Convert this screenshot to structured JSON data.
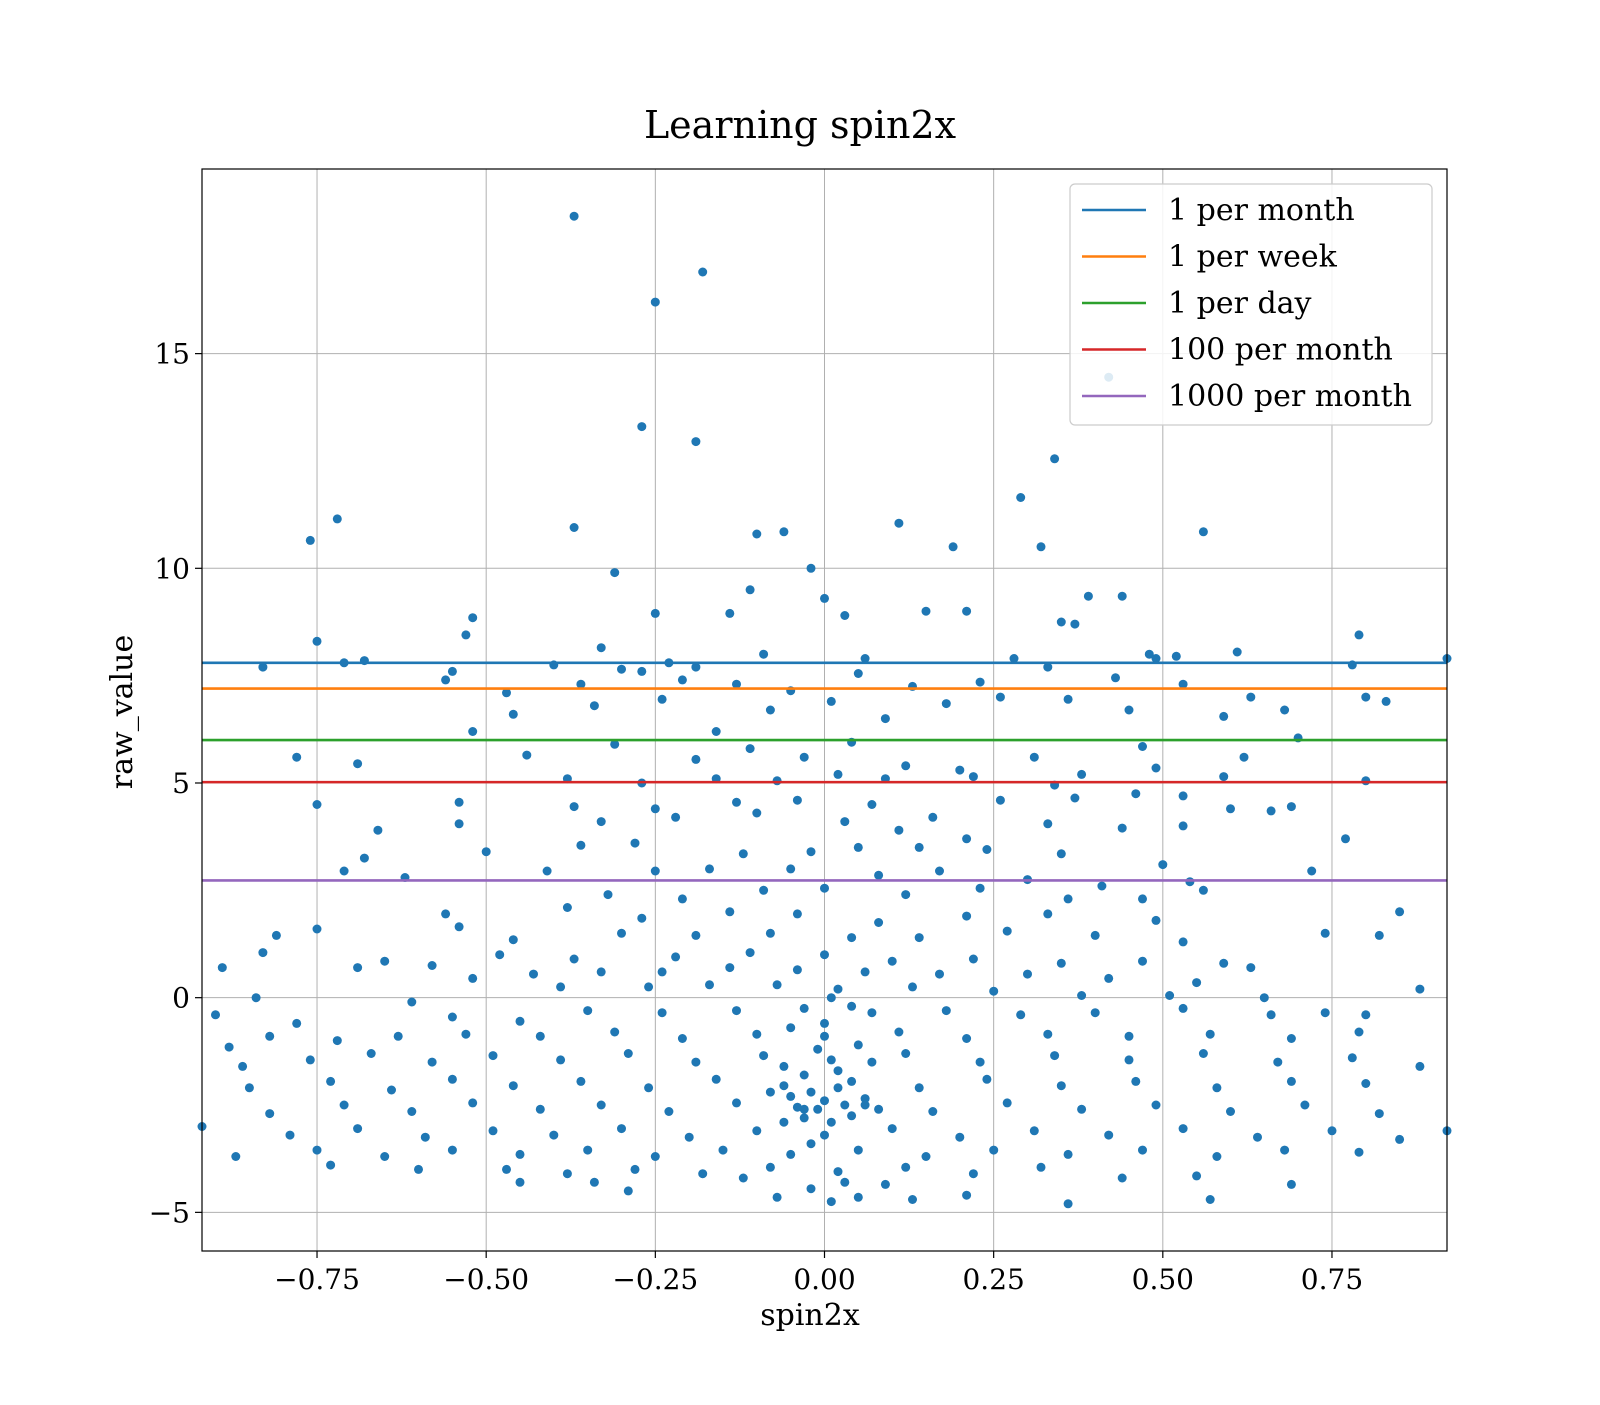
{
  "chart_data": {
    "type": "scatter",
    "title": "Learning spin2x",
    "xlabel": "spin2x",
    "ylabel": "raw_value",
    "xlim": [
      -0.92,
      0.92
    ],
    "ylim": [
      -5.9,
      19.3
    ],
    "grid": true,
    "legend_position": "top-right",
    "x_ticks": [
      -0.75,
      -0.5,
      -0.25,
      0.0,
      0.25,
      0.5,
      0.75
    ],
    "x_tick_labels": [
      "−0.75",
      "−0.50",
      "−0.25",
      "0.00",
      "0.25",
      "0.50",
      "0.75"
    ],
    "y_ticks": [
      -5,
      0,
      5,
      10,
      15
    ],
    "y_tick_labels": [
      "−5",
      "0",
      "5",
      "10",
      "15"
    ],
    "scatter_color": "#1f77b4",
    "hlines": [
      {
        "name": "1 per month",
        "y": 7.8,
        "color": "#1f77b4"
      },
      {
        "name": "1 per week",
        "y": 7.2,
        "color": "#ff7f0e"
      },
      {
        "name": "1 per day",
        "y": 6.0,
        "color": "#2ca02c"
      },
      {
        "name": "100 per month",
        "y": 5.02,
        "color": "#d62728"
      },
      {
        "name": "1000 per month",
        "y": 2.73,
        "color": "#9467bd"
      }
    ],
    "points": [
      [
        -0.37,
        18.2
      ],
      [
        -0.18,
        16.9
      ],
      [
        -0.25,
        16.2
      ],
      [
        -0.27,
        13.3
      ],
      [
        -0.19,
        12.95
      ],
      [
        0.42,
        14.45
      ],
      [
        0.34,
        12.55
      ],
      [
        0.29,
        11.65
      ],
      [
        -0.72,
        11.15
      ],
      [
        -0.76,
        10.65
      ],
      [
        -0.37,
        10.95
      ],
      [
        -0.1,
        10.8
      ],
      [
        -0.06,
        10.85
      ],
      [
        0.11,
        11.05
      ],
      [
        0.19,
        10.5
      ],
      [
        0.32,
        10.5
      ],
      [
        0.56,
        10.85
      ],
      [
        -0.02,
        10.0
      ],
      [
        -0.31,
        9.9
      ],
      [
        -0.11,
        9.5
      ],
      [
        0.0,
        9.3
      ],
      [
        0.21,
        9.0
      ],
      [
        0.39,
        9.35
      ],
      [
        0.44,
        9.35
      ],
      [
        0.15,
        9.0
      ],
      [
        -0.25,
        8.95
      ],
      [
        -0.52,
        8.85
      ],
      [
        -0.53,
        8.45
      ],
      [
        -0.14,
        8.95
      ],
      [
        0.03,
        8.9
      ],
      [
        0.35,
        8.75
      ],
      [
        0.37,
        8.7
      ],
      [
        -0.75,
        8.3
      ],
      [
        -0.33,
        8.15
      ],
      [
        0.61,
        8.05
      ],
      [
        0.79,
        8.45
      ],
      [
        0.48,
        8.0
      ],
      [
        0.49,
        7.9
      ],
      [
        0.52,
        7.95
      ],
      [
        0.92,
        7.9
      ],
      [
        -0.83,
        7.7
      ],
      [
        -0.71,
        7.8
      ],
      [
        -0.68,
        7.85
      ],
      [
        -0.4,
        7.75
      ],
      [
        -0.23,
        7.8
      ],
      [
        -0.3,
        7.65
      ],
      [
        -0.19,
        7.7
      ],
      [
        -0.09,
        8.0
      ],
      [
        0.06,
        7.9
      ],
      [
        0.28,
        7.9
      ],
      [
        -0.55,
        7.6
      ],
      [
        -0.47,
        7.1
      ],
      [
        -0.36,
        7.3
      ],
      [
        -0.27,
        7.6
      ],
      [
        -0.21,
        7.4
      ],
      [
        -0.13,
        7.3
      ],
      [
        -0.05,
        7.15
      ],
      [
        0.05,
        7.55
      ],
      [
        0.13,
        7.25
      ],
      [
        0.23,
        7.35
      ],
      [
        0.33,
        7.7
      ],
      [
        0.43,
        7.45
      ],
      [
        0.53,
        7.3
      ],
      [
        0.63,
        7.0
      ],
      [
        0.78,
        7.75
      ],
      [
        0.8,
        7.0
      ],
      [
        0.83,
        6.9
      ],
      [
        -0.56,
        7.4
      ],
      [
        -0.46,
        6.6
      ],
      [
        -0.34,
        6.8
      ],
      [
        -0.24,
        6.95
      ],
      [
        -0.16,
        6.2
      ],
      [
        -0.08,
        6.7
      ],
      [
        0.01,
        6.9
      ],
      [
        0.09,
        6.5
      ],
      [
        0.18,
        6.85
      ],
      [
        0.26,
        7.0
      ],
      [
        0.36,
        6.95
      ],
      [
        0.45,
        6.7
      ],
      [
        0.59,
        6.55
      ],
      [
        0.68,
        6.7
      ],
      [
        0.7,
        6.05
      ],
      [
        -0.52,
        6.2
      ],
      [
        -0.44,
        5.65
      ],
      [
        -0.31,
        5.9
      ],
      [
        -0.19,
        5.55
      ],
      [
        -0.11,
        5.8
      ],
      [
        -0.03,
        5.6
      ],
      [
        0.04,
        5.95
      ],
      [
        0.12,
        5.4
      ],
      [
        0.2,
        5.3
      ],
      [
        0.31,
        5.6
      ],
      [
        0.38,
        5.2
      ],
      [
        0.47,
        5.85
      ],
      [
        0.62,
        5.6
      ],
      [
        -0.78,
        5.6
      ],
      [
        -0.69,
        5.45
      ],
      [
        -0.38,
        5.1
      ],
      [
        -0.27,
        5.0
      ],
      [
        -0.16,
        5.1
      ],
      [
        -0.07,
        5.05
      ],
      [
        0.02,
        5.2
      ],
      [
        0.09,
        5.1
      ],
      [
        0.22,
        5.15
      ],
      [
        0.34,
        4.95
      ],
      [
        0.49,
        5.35
      ],
      [
        0.59,
        5.15
      ],
      [
        0.8,
        5.05
      ],
      [
        -0.75,
        4.5
      ],
      [
        -0.54,
        4.55
      ],
      [
        -0.37,
        4.45
      ],
      [
        -0.25,
        4.4
      ],
      [
        -0.13,
        4.55
      ],
      [
        -0.04,
        4.6
      ],
      [
        0.07,
        4.5
      ],
      [
        0.16,
        4.2
      ],
      [
        0.26,
        4.6
      ],
      [
        0.37,
        4.65
      ],
      [
        0.46,
        4.75
      ],
      [
        0.53,
        4.7
      ],
      [
        0.6,
        4.4
      ],
      [
        0.66,
        4.35
      ],
      [
        0.69,
        4.45
      ],
      [
        -0.54,
        4.05
      ],
      [
        -0.33,
        4.1
      ],
      [
        -0.22,
        4.2
      ],
      [
        -0.1,
        4.3
      ],
      [
        0.03,
        4.1
      ],
      [
        0.11,
        3.9
      ],
      [
        0.21,
        3.7
      ],
      [
        0.33,
        4.05
      ],
      [
        0.44,
        3.95
      ],
      [
        0.53,
        4.0
      ],
      [
        -0.66,
        3.9
      ],
      [
        -0.5,
        3.4
      ],
      [
        -0.36,
        3.55
      ],
      [
        -0.28,
        3.6
      ],
      [
        -0.12,
        3.35
      ],
      [
        -0.02,
        3.4
      ],
      [
        0.05,
        3.5
      ],
      [
        0.14,
        3.5
      ],
      [
        0.24,
        3.45
      ],
      [
        0.35,
        3.35
      ],
      [
        0.5,
        3.1
      ],
      [
        0.77,
        3.7
      ],
      [
        -0.68,
        3.25
      ],
      [
        -0.41,
        2.95
      ],
      [
        -0.25,
        2.95
      ],
      [
        -0.17,
        3.0
      ],
      [
        -0.05,
        3.0
      ],
      [
        0.08,
        2.85
      ],
      [
        0.17,
        2.95
      ],
      [
        0.3,
        2.75
      ],
      [
        0.41,
        2.6
      ],
      [
        0.54,
        2.7
      ],
      [
        0.72,
        2.95
      ],
      [
        -0.71,
        2.95
      ],
      [
        -0.62,
        2.8
      ],
      [
        -0.32,
        2.4
      ],
      [
        -0.21,
        2.3
      ],
      [
        -0.09,
        2.5
      ],
      [
        0.0,
        2.55
      ],
      [
        0.12,
        2.4
      ],
      [
        0.23,
        2.55
      ],
      [
        0.36,
        2.3
      ],
      [
        0.47,
        2.3
      ],
      [
        0.56,
        2.5
      ],
      [
        0.85,
        2.0
      ],
      [
        -0.56,
        1.95
      ],
      [
        -0.38,
        2.1
      ],
      [
        -0.27,
        1.85
      ],
      [
        -0.14,
        2.0
      ],
      [
        -0.04,
        1.95
      ],
      [
        0.08,
        1.75
      ],
      [
        0.21,
        1.9
      ],
      [
        0.33,
        1.95
      ],
      [
        0.49,
        1.8
      ],
      [
        0.74,
        1.5
      ],
      [
        -0.81,
        1.45
      ],
      [
        -0.75,
        1.6
      ],
      [
        -0.54,
        1.65
      ],
      [
        -0.46,
        1.35
      ],
      [
        -0.3,
        1.5
      ],
      [
        -0.19,
        1.45
      ],
      [
        -0.08,
        1.5
      ],
      [
        0.04,
        1.4
      ],
      [
        0.14,
        1.4
      ],
      [
        0.27,
        1.55
      ],
      [
        0.4,
        1.45
      ],
      [
        0.53,
        1.3
      ],
      [
        0.82,
        1.45
      ],
      [
        -0.83,
        1.05
      ],
      [
        -0.65,
        0.85
      ],
      [
        -0.48,
        1.0
      ],
      [
        -0.37,
        0.9
      ],
      [
        -0.22,
        0.95
      ],
      [
        -0.11,
        1.05
      ],
      [
        0.0,
        1.0
      ],
      [
        0.1,
        0.85
      ],
      [
        0.22,
        0.9
      ],
      [
        0.35,
        0.8
      ],
      [
        0.47,
        0.85
      ],
      [
        0.59,
        0.8
      ],
      [
        -0.89,
        0.7
      ],
      [
        -0.69,
        0.7
      ],
      [
        -0.58,
        0.75
      ],
      [
        -0.43,
        0.55
      ],
      [
        -0.33,
        0.6
      ],
      [
        -0.24,
        0.6
      ],
      [
        -0.14,
        0.7
      ],
      [
        -0.04,
        0.65
      ],
      [
        0.06,
        0.6
      ],
      [
        0.17,
        0.55
      ],
      [
        0.3,
        0.55
      ],
      [
        0.42,
        0.45
      ],
      [
        0.55,
        0.35
      ],
      [
        0.63,
        0.7
      ],
      [
        -0.84,
        0.0
      ],
      [
        -0.61,
        -0.1
      ],
      [
        -0.52,
        0.45
      ],
      [
        -0.39,
        0.25
      ],
      [
        -0.26,
        0.25
      ],
      [
        -0.17,
        0.3
      ],
      [
        -0.07,
        0.3
      ],
      [
        0.02,
        0.2
      ],
      [
        0.13,
        0.25
      ],
      [
        0.25,
        0.15
      ],
      [
        0.38,
        0.05
      ],
      [
        0.51,
        0.05
      ],
      [
        0.65,
        0.0
      ],
      [
        0.88,
        0.2
      ],
      [
        -0.9,
        -0.4
      ],
      [
        -0.78,
        -0.6
      ],
      [
        -0.55,
        -0.45
      ],
      [
        -0.45,
        -0.55
      ],
      [
        -0.35,
        -0.3
      ],
      [
        -0.24,
        -0.35
      ],
      [
        -0.13,
        -0.3
      ],
      [
        -0.03,
        -0.25
      ],
      [
        0.07,
        -0.35
      ],
      [
        0.18,
        -0.3
      ],
      [
        0.29,
        -0.4
      ],
      [
        0.4,
        -0.35
      ],
      [
        0.53,
        -0.25
      ],
      [
        0.66,
        -0.4
      ],
      [
        0.74,
        -0.35
      ],
      [
        0.8,
        -0.4
      ],
      [
        -0.88,
        -1.15
      ],
      [
        -0.82,
        -0.9
      ],
      [
        -0.72,
        -1.0
      ],
      [
        -0.63,
        -0.9
      ],
      [
        -0.53,
        -0.85
      ],
      [
        -0.42,
        -0.9
      ],
      [
        -0.31,
        -0.8
      ],
      [
        -0.21,
        -0.95
      ],
      [
        -0.1,
        -0.85
      ],
      [
        0.0,
        -0.9
      ],
      [
        0.11,
        -0.8
      ],
      [
        0.21,
        -0.95
      ],
      [
        0.33,
        -0.85
      ],
      [
        0.45,
        -0.9
      ],
      [
        0.57,
        -0.85
      ],
      [
        0.69,
        -0.95
      ],
      [
        0.79,
        -0.8
      ],
      [
        -0.86,
        -1.6
      ],
      [
        -0.76,
        -1.45
      ],
      [
        -0.67,
        -1.3
      ],
      [
        -0.58,
        -1.5
      ],
      [
        -0.49,
        -1.35
      ],
      [
        -0.39,
        -1.45
      ],
      [
        -0.29,
        -1.3
      ],
      [
        -0.19,
        -1.5
      ],
      [
        -0.09,
        -1.35
      ],
      [
        0.01,
        -1.45
      ],
      [
        0.12,
        -1.3
      ],
      [
        0.23,
        -1.5
      ],
      [
        0.34,
        -1.35
      ],
      [
        0.45,
        -1.45
      ],
      [
        0.56,
        -1.3
      ],
      [
        0.67,
        -1.5
      ],
      [
        0.78,
        -1.4
      ],
      [
        0.88,
        -1.6
      ],
      [
        -0.85,
        -2.1
      ],
      [
        -0.73,
        -1.95
      ],
      [
        -0.64,
        -2.15
      ],
      [
        -0.55,
        -1.9
      ],
      [
        -0.46,
        -2.05
      ],
      [
        -0.36,
        -1.95
      ],
      [
        -0.26,
        -2.1
      ],
      [
        -0.16,
        -1.9
      ],
      [
        -0.06,
        -2.05
      ],
      [
        0.04,
        -1.95
      ],
      [
        0.14,
        -2.1
      ],
      [
        0.24,
        -1.9
      ],
      [
        0.35,
        -2.05
      ],
      [
        0.46,
        -1.95
      ],
      [
        0.58,
        -2.1
      ],
      [
        0.69,
        -1.95
      ],
      [
        0.8,
        -2.0
      ],
      [
        -0.82,
        -2.7
      ],
      [
        -0.71,
        -2.5
      ],
      [
        -0.61,
        -2.65
      ],
      [
        -0.52,
        -2.45
      ],
      [
        -0.42,
        -2.6
      ],
      [
        -0.33,
        -2.5
      ],
      [
        -0.23,
        -2.65
      ],
      [
        -0.13,
        -2.45
      ],
      [
        -0.03,
        -2.6
      ],
      [
        0.06,
        -2.5
      ],
      [
        0.16,
        -2.65
      ],
      [
        0.27,
        -2.45
      ],
      [
        0.38,
        -2.6
      ],
      [
        0.49,
        -2.5
      ],
      [
        0.6,
        -2.65
      ],
      [
        0.71,
        -2.5
      ],
      [
        0.82,
        -2.7
      ],
      [
        -0.92,
        -3.0
      ],
      [
        -0.79,
        -3.2
      ],
      [
        -0.69,
        -3.05
      ],
      [
        -0.59,
        -3.25
      ],
      [
        -0.49,
        -3.1
      ],
      [
        -0.4,
        -3.2
      ],
      [
        -0.3,
        -3.05
      ],
      [
        -0.2,
        -3.25
      ],
      [
        -0.1,
        -3.1
      ],
      [
        0.0,
        -3.2
      ],
      [
        0.1,
        -3.05
      ],
      [
        0.2,
        -3.25
      ],
      [
        0.31,
        -3.1
      ],
      [
        0.42,
        -3.2
      ],
      [
        0.53,
        -3.05
      ],
      [
        0.64,
        -3.25
      ],
      [
        0.75,
        -3.1
      ],
      [
        0.85,
        -3.3
      ],
      [
        0.92,
        -3.1
      ],
      [
        -0.87,
        -3.7
      ],
      [
        -0.75,
        -3.55
      ],
      [
        -0.65,
        -3.7
      ],
      [
        -0.55,
        -3.55
      ],
      [
        -0.45,
        -3.65
      ],
      [
        -0.35,
        -3.55
      ],
      [
        -0.25,
        -3.7
      ],
      [
        -0.15,
        -3.55
      ],
      [
        -0.05,
        -3.65
      ],
      [
        0.05,
        -3.55
      ],
      [
        0.15,
        -3.7
      ],
      [
        0.25,
        -3.55
      ],
      [
        0.36,
        -3.65
      ],
      [
        0.47,
        -3.55
      ],
      [
        0.58,
        -3.7
      ],
      [
        0.68,
        -3.55
      ],
      [
        0.79,
        -3.6
      ],
      [
        -0.6,
        -4.0
      ],
      [
        -0.47,
        -4.0
      ],
      [
        -0.38,
        -4.1
      ],
      [
        -0.28,
        -4.0
      ],
      [
        -0.18,
        -4.1
      ],
      [
        -0.08,
        -3.95
      ],
      [
        0.02,
        -4.05
      ],
      [
        0.12,
        -3.95
      ],
      [
        0.22,
        -4.1
      ],
      [
        0.32,
        -3.95
      ],
      [
        0.44,
        -4.2
      ],
      [
        0.55,
        -4.15
      ],
      [
        -0.73,
        -3.9
      ],
      [
        -0.45,
        -4.3
      ],
      [
        -0.29,
        -4.5
      ],
      [
        -0.07,
        -4.65
      ],
      [
        0.01,
        -4.75
      ],
      [
        0.05,
        -4.65
      ],
      [
        0.13,
        -4.7
      ],
      [
        0.21,
        -4.6
      ],
      [
        0.36,
        -4.8
      ],
      [
        0.57,
        -4.7
      ],
      [
        0.69,
        -4.35
      ],
      [
        -0.02,
        -4.45
      ],
      [
        0.03,
        -4.3
      ],
      [
        -0.12,
        -4.2
      ],
      [
        0.09,
        -4.35
      ],
      [
        -0.34,
        -4.3
      ],
      [
        -0.05,
        -2.3
      ],
      [
        -0.03,
        -2.8
      ],
      [
        -0.02,
        -2.2
      ],
      [
        -0.01,
        -2.6
      ],
      [
        0.0,
        -2.4
      ],
      [
        0.01,
        -2.9
      ],
      [
        0.02,
        -2.1
      ],
      [
        0.03,
        -2.5
      ],
      [
        0.04,
        -2.75
      ],
      [
        -0.04,
        -2.55
      ],
      [
        -0.06,
        -2.9
      ],
      [
        0.06,
        -2.35
      ],
      [
        -0.08,
        -2.2
      ],
      [
        0.08,
        -2.6
      ],
      [
        -0.02,
        -3.4
      ],
      [
        0.02,
        -1.7
      ],
      [
        -0.01,
        -1.2
      ],
      [
        0.0,
        -0.6
      ],
      [
        0.01,
        0.0
      ],
      [
        -0.03,
        -1.8
      ],
      [
        0.05,
        -1.1
      ],
      [
        -0.05,
        -0.7
      ],
      [
        0.04,
        -0.2
      ],
      [
        -0.06,
        -1.6
      ],
      [
        0.07,
        -1.5
      ]
    ]
  }
}
